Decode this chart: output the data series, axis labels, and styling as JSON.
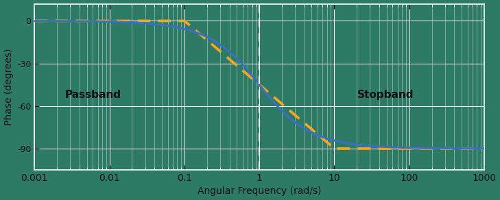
{
  "background_color": "#2D7B65",
  "plot_bg_color": "#2D7B65",
  "line_color_blue": "#3B6FBF",
  "line_color_orange": "#F5A623",
  "vline_color": "white",
  "grid_color": "white",
  "text_color": "#111111",
  "label_color": "#111111",
  "xlabel": "Angular Frequency (rad/s)",
  "ylabel": "Phase (degrees)",
  "passband_label": "Passband",
  "stopband_label": "Stopband",
  "xmin": 0.001,
  "xmax": 1000,
  "ymin": -105,
  "ymax": 12,
  "yticks": [
    0,
    -30,
    -60,
    -90
  ],
  "vline_x": 1.0,
  "cutoff": 1.0,
  "filter_order": 2,
  "figsize": [
    7.29,
    2.92
  ],
  "dpi": 100,
  "font_size_labels": 10,
  "font_size_ticks": 9,
  "font_size_annotations": 11,
  "line_width": 2.2,
  "approx_low_decade": -1,
  "approx_high_decade": 1
}
